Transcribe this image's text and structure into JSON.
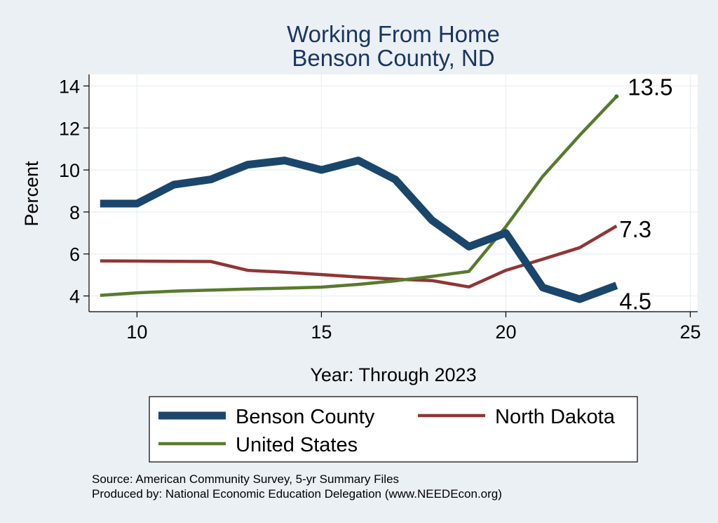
{
  "chart_data": {
    "type": "line",
    "title": [
      "Working From Home",
      "Benson County, ND"
    ],
    "xlabel": "Year: Through 2023",
    "ylabel": "Percent",
    "xlim": [
      8.7,
      25.2
    ],
    "ylim": [
      3.25,
      14.55
    ],
    "xticks": [
      10,
      15,
      20,
      25
    ],
    "yticks": [
      4,
      6,
      8,
      10,
      12,
      14
    ],
    "grid": true,
    "legend_position": "bottom",
    "colors": {
      "benson": "#1a466b",
      "north_dakota": "#8f3535",
      "united_states": "#587a2e",
      "background": "#ebf0f5",
      "plot_background": "#ffffff",
      "title": "#1a3560"
    },
    "series": [
      {
        "key": "benson",
        "name": "Benson County",
        "x": [
          9,
          10,
          11,
          12,
          13,
          14,
          15,
          16,
          17,
          18,
          19,
          20,
          21,
          22,
          23
        ],
        "values": [
          8.4,
          8.4,
          9.3,
          9.55,
          10.25,
          10.45,
          10.0,
          10.45,
          9.55,
          7.6,
          6.35,
          7.0,
          4.4,
          3.85,
          4.5
        ],
        "end_label": "4.5"
      },
      {
        "key": "north_dakota",
        "name": "North Dakota",
        "x": [
          9,
          10,
          11,
          12,
          13,
          14,
          15,
          16,
          17,
          18,
          19,
          20,
          21,
          22,
          23
        ],
        "values": [
          5.67,
          5.66,
          5.65,
          5.64,
          5.22,
          5.13,
          5.02,
          4.9,
          4.8,
          4.73,
          4.43,
          5.22,
          5.75,
          6.3,
          7.33
        ],
        "end_label": "7.3"
      },
      {
        "key": "united_states",
        "name": "United States",
        "x": [
          9,
          10,
          11,
          12,
          13,
          14,
          15,
          16,
          17,
          18,
          19,
          20,
          21,
          22,
          23
        ],
        "values": [
          4.03,
          4.15,
          4.23,
          4.28,
          4.33,
          4.37,
          4.42,
          4.55,
          4.72,
          4.93,
          5.17,
          7.3,
          9.7,
          11.65,
          13.5
        ],
        "end_label": "13.5"
      }
    ]
  },
  "source": "Source: American Community Survey, 5-yr Summary Files",
  "produced_by": "Produced by: National Economic Education Delegation (www.NEEDEcon.org)"
}
